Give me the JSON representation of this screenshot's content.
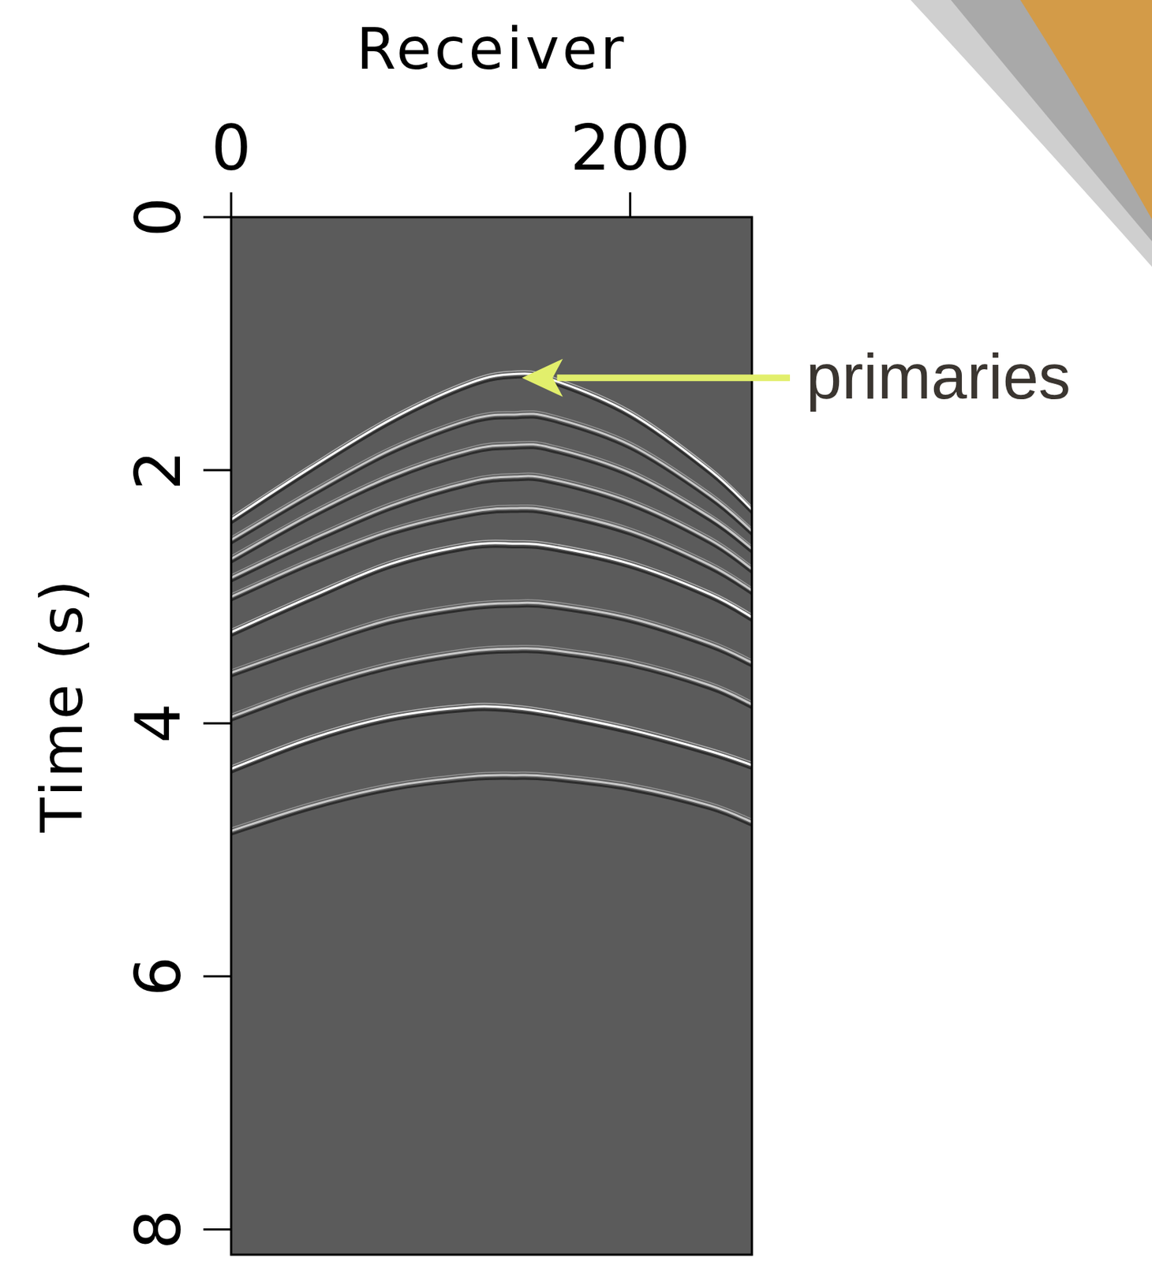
{
  "chart_data": {
    "type": "seismic_gather",
    "x_label": "Receiver",
    "y_label": "Time (s)",
    "xlim": [
      0,
      261
    ],
    "ylim": [
      0,
      8.2
    ],
    "xticks": [
      0,
      200
    ],
    "yticks": [
      0,
      2,
      4,
      6,
      8
    ],
    "grid": false,
    "x": [
      0,
      40,
      80,
      120,
      142,
      160,
      200,
      240,
      261
    ],
    "series": [
      {
        "color": "#c8c8c8",
        "values": [
          2.55,
          2.18,
          1.84,
          1.6,
          1.56,
          1.58,
          1.8,
          2.2,
          2.48
        ]
      },
      {
        "color": "#c8c8c8",
        "values": [
          2.7,
          2.35,
          2.05,
          1.84,
          1.8,
          1.82,
          2.02,
          2.37,
          2.62
        ]
      },
      {
        "color": "#c8c8c8",
        "values": [
          2.85,
          2.55,
          2.28,
          2.09,
          2.05,
          2.07,
          2.25,
          2.55,
          2.78
        ]
      },
      {
        "color": "#c8c8c8",
        "values": [
          3.0,
          2.72,
          2.48,
          2.33,
          2.3,
          2.32,
          2.48,
          2.75,
          2.95
        ]
      },
      {
        "color": "#c8c8c8",
        "values": [
          3.6,
          3.38,
          3.18,
          3.07,
          3.05,
          3.06,
          3.17,
          3.37,
          3.52
        ]
      },
      {
        "color": "#c8c8c8",
        "values": [
          3.95,
          3.72,
          3.54,
          3.43,
          3.41,
          3.42,
          3.52,
          3.7,
          3.85
        ]
      },
      {
        "color": "#c8c8c8",
        "values": [
          4.85,
          4.65,
          4.5,
          4.42,
          4.41,
          4.42,
          4.5,
          4.65,
          4.78
        ]
      },
      {
        "color": "#ffffff",
        "values": [
          2.39,
          1.98,
          1.6,
          1.31,
          1.24,
          1.28,
          1.55,
          2.0,
          2.31
        ]
      },
      {
        "color": "#ffffff",
        "values": [
          3.28,
          3.0,
          2.74,
          2.59,
          2.58,
          2.6,
          2.74,
          2.98,
          3.16
        ]
      },
      {
        "color": "#ffffff",
        "values": [
          4.36,
          4.12,
          3.95,
          3.87,
          3.88,
          3.92,
          4.05,
          4.22,
          4.33
        ]
      }
    ],
    "annotation": {
      "text": "primaries",
      "x": 145,
      "y": 1.27
    }
  }
}
